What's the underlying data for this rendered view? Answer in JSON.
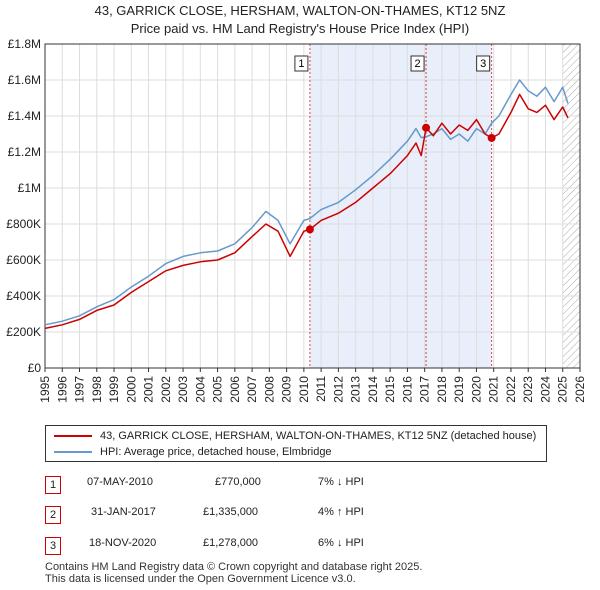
{
  "title_line1": "43, GARRICK CLOSE, HERSHAM, WALTON-ON-THAMES, KT12 5NZ",
  "title_line2": "Price paid vs. HM Land Registry's House Price Index (HPI)",
  "colors": {
    "price_paid": "#cc0000",
    "hpi": "#6699cc",
    "shade": "#e8eefa",
    "grid": "#dddddd",
    "marker": "#cc0000"
  },
  "chart_data": {
    "type": "line",
    "xlabel": "",
    "ylabel": "",
    "xlim": [
      1995,
      2026
    ],
    "ylim": [
      0,
      1800000
    ],
    "x_ticks": [
      "1995",
      "1996",
      "1997",
      "1998",
      "1999",
      "2000",
      "2001",
      "2002",
      "2003",
      "2004",
      "2005",
      "2006",
      "2007",
      "2008",
      "2009",
      "2010",
      "2011",
      "2012",
      "2013",
      "2014",
      "2015",
      "2016",
      "2017",
      "2018",
      "2019",
      "2020",
      "2021",
      "2022",
      "2023",
      "2024",
      "2025",
      "2026"
    ],
    "y_ticks": [
      {
        "value": 0,
        "label": "£0"
      },
      {
        "value": 200000,
        "label": "£200K"
      },
      {
        "value": 400000,
        "label": "£400K"
      },
      {
        "value": 600000,
        "label": "£600K"
      },
      {
        "value": 800000,
        "label": "£800K"
      },
      {
        "value": 1000000,
        "label": "£1M"
      },
      {
        "value": 1200000,
        "label": "£1.2M"
      },
      {
        "value": 1400000,
        "label": "£1.4M"
      },
      {
        "value": 1600000,
        "label": "£1.6M"
      },
      {
        "value": 1800000,
        "label": "£1.8M"
      }
    ],
    "shaded_range": [
      2010.35,
      2020.88
    ],
    "hatched_from": 2025.0,
    "series": [
      {
        "name": "43, GARRICK CLOSE, HERSHAM, WALTON-ON-THAMES, KT12 5NZ (detached house)",
        "key": "price_paid",
        "x": [
          1995.0,
          1996.0,
          1997.0,
          1998.0,
          1999.0,
          2000.0,
          2001.0,
          2002.0,
          2003.0,
          2004.0,
          2005.0,
          2006.0,
          2007.0,
          2007.8,
          2008.5,
          2009.2,
          2010.0,
          2010.35,
          2011.0,
          2012.0,
          2013.0,
          2014.0,
          2015.0,
          2016.0,
          2016.5,
          2016.8,
          2017.08,
          2017.5,
          2018.0,
          2018.5,
          2019.0,
          2019.5,
          2020.0,
          2020.5,
          2020.88,
          2021.3,
          2022.0,
          2022.5,
          2023.0,
          2023.5,
          2024.0,
          2024.5,
          2025.0,
          2025.3
        ],
        "values": [
          220000,
          240000,
          270000,
          320000,
          350000,
          420000,
          480000,
          540000,
          570000,
          590000,
          600000,
          640000,
          730000,
          800000,
          760000,
          620000,
          760000,
          770000,
          820000,
          860000,
          920000,
          1000000,
          1080000,
          1180000,
          1250000,
          1180000,
          1335000,
          1290000,
          1360000,
          1300000,
          1350000,
          1320000,
          1380000,
          1300000,
          1278000,
          1300000,
          1420000,
          1520000,
          1440000,
          1420000,
          1460000,
          1380000,
          1450000,
          1390000
        ]
      },
      {
        "name": "HPI: Average price, detached house, Elmbridge",
        "key": "hpi",
        "x": [
          1995.0,
          1996.0,
          1997.0,
          1998.0,
          1999.0,
          2000.0,
          2001.0,
          2002.0,
          2003.0,
          2004.0,
          2005.0,
          2006.0,
          2007.0,
          2007.8,
          2008.5,
          2009.2,
          2010.0,
          2010.35,
          2011.0,
          2012.0,
          2013.0,
          2014.0,
          2015.0,
          2016.0,
          2016.5,
          2016.8,
          2017.08,
          2017.5,
          2018.0,
          2018.5,
          2019.0,
          2019.5,
          2020.0,
          2020.5,
          2020.88,
          2021.3,
          2022.0,
          2022.5,
          2023.0,
          2023.5,
          2024.0,
          2024.5,
          2025.0,
          2025.3
        ],
        "values": [
          240000,
          260000,
          290000,
          340000,
          380000,
          450000,
          510000,
          580000,
          620000,
          640000,
          650000,
          690000,
          780000,
          870000,
          820000,
          690000,
          820000,
          830000,
          880000,
          920000,
          990000,
          1070000,
          1160000,
          1260000,
          1330000,
          1280000,
          1285000,
          1300000,
          1330000,
          1270000,
          1300000,
          1260000,
          1330000,
          1300000,
          1360000,
          1400000,
          1520000,
          1600000,
          1540000,
          1510000,
          1560000,
          1480000,
          1560000,
          1470000
        ]
      }
    ],
    "sales": [
      {
        "marker": "1",
        "x": 2010.35,
        "value": 770000,
        "date": "07-MAY-2010",
        "price": "£770,000",
        "hpi_diff": "7% ↓ HPI"
      },
      {
        "marker": "2",
        "x": 2017.08,
        "value": 1335000,
        "date": "31-JAN-2017",
        "price": "£1,335,000",
        "hpi_diff": "4% ↑ HPI"
      },
      {
        "marker": "3",
        "x": 2020.88,
        "value": 1278000,
        "date": "18-NOV-2020",
        "price": "£1,278,000",
        "hpi_diff": "6% ↓ HPI"
      }
    ]
  },
  "legend": {
    "price_paid_label": "43, GARRICK CLOSE, HERSHAM, WALTON-ON-THAMES, KT12 5NZ (detached house)",
    "hpi_label": "HPI: Average price, detached house, Elmbridge"
  },
  "footer": {
    "line1": "Contains HM Land Registry data © Crown copyright and database right 2025.",
    "line2": "This data is licensed under the Open Government Licence v3.0."
  }
}
